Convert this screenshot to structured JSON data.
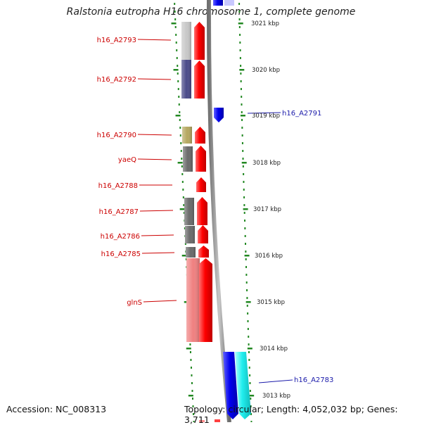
{
  "title": "Ralstonia eutropha H16 chromosome 1, complete genome",
  "footer": {
    "accession": "Accession: NC_008313",
    "summary": "Topology: circular; Length: 4,052,032 bp; Genes: 3,711"
  },
  "colors": {
    "gene_label": "#cc0000",
    "reverse_label": "#1a1aaa",
    "forward_gene": "#ee0000",
    "reverse_gene": "#0000dd",
    "tick": "#228822"
  },
  "kbp_ticks": [
    "3021 kbp",
    "3020 kbp",
    "3019 kbp",
    "3018 kbp",
    "3017 kbp",
    "3016 kbp",
    "3015 kbp",
    "3014 kbp",
    "3013 kbp"
  ],
  "genes_left": [
    {
      "name": "h16_A2793",
      "cog": "#c8c8c8"
    },
    {
      "name": "h16_A2792",
      "cog": "#4a4a8a"
    },
    {
      "name": "h16_A2790",
      "cog": "#b5a860"
    },
    {
      "name": "yaeQ",
      "cog": "#6a6a6a"
    },
    {
      "name": "h16_A2788",
      "cog": ""
    },
    {
      "name": "h16_A2787",
      "cog": "#6a6a6a"
    },
    {
      "name": "h16_A2786",
      "cog": "#6a6a6a"
    },
    {
      "name": "h16_A2785",
      "cog": "#6a6a6a"
    },
    {
      "name": "glnS",
      "cog": "#f08080"
    }
  ],
  "genes_right": [
    {
      "name": "h16_A2791"
    },
    {
      "name": "h16_A2783"
    }
  ]
}
